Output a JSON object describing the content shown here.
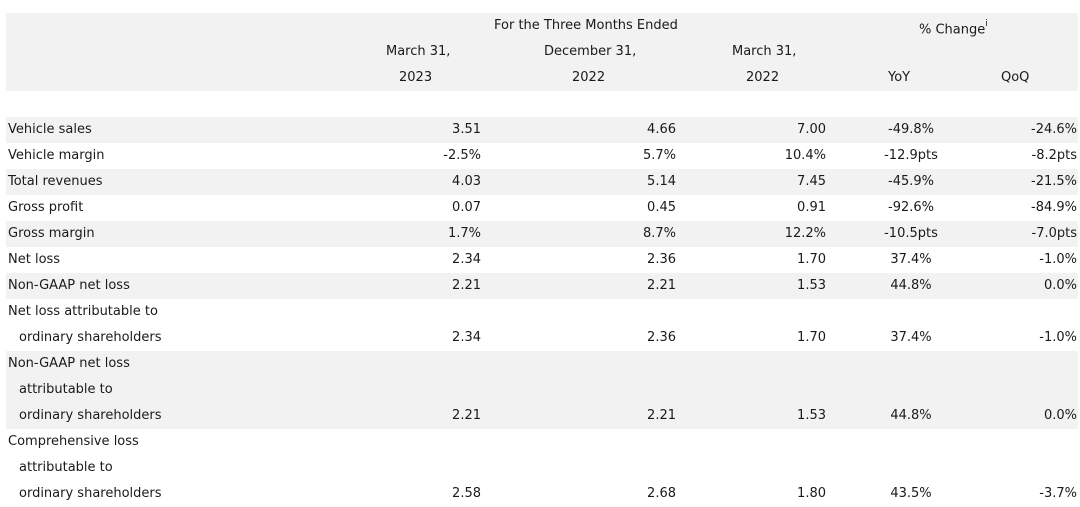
{
  "header": {
    "group_label": "For the Three Months Ended",
    "change_label": "% Change",
    "change_sup": "i",
    "periods": [
      {
        "month": "March 31,",
        "year": "2023"
      },
      {
        "month": "December 31,",
        "year": "2022"
      },
      {
        "month": "March 31,",
        "year": "2022"
      }
    ],
    "yoy": "YoY",
    "qoq": "QoQ"
  },
  "rows": [
    {
      "label": [
        "Vehicle sales"
      ],
      "values": [
        "3.51",
        "4.66",
        "7.00",
        "-49.8%",
        "-24.6%"
      ]
    },
    {
      "label": [
        "Vehicle margin"
      ],
      "values": [
        "-2.5%",
        "5.7%",
        "10.4%",
        "-12.9pts",
        "-8.2pts"
      ]
    },
    {
      "label": [
        "Total revenues"
      ],
      "values": [
        "4.03",
        "5.14",
        "7.45",
        "-45.9%",
        "-21.5%"
      ]
    },
    {
      "label": [
        "Gross profit"
      ],
      "values": [
        "0.07",
        "0.45",
        "0.91",
        "-92.6%",
        "-84.9%"
      ]
    },
    {
      "label": [
        "Gross margin"
      ],
      "values": [
        "1.7%",
        "8.7%",
        "12.2%",
        "-10.5pts",
        "-7.0pts"
      ]
    },
    {
      "label": [
        "Net loss"
      ],
      "values": [
        "2.34",
        "2.36",
        "1.70",
        "37.4%",
        "-1.0%"
      ]
    },
    {
      "label": [
        "Non-GAAP net loss"
      ],
      "values": [
        "2.21",
        "2.21",
        "1.53",
        "44.8%",
        "0.0%"
      ]
    },
    {
      "label": [
        "Net loss attributable to",
        "ordinary shareholders"
      ],
      "values": [
        "2.34",
        "2.36",
        "1.70",
        "37.4%",
        "-1.0%"
      ]
    },
    {
      "label": [
        "Non-GAAP net loss",
        "attributable to",
        "ordinary shareholders"
      ],
      "values": [
        "2.21",
        "2.21",
        "1.53",
        "44.8%",
        "0.0%"
      ]
    },
    {
      "label": [
        "Comprehensive loss",
        "attributable to",
        "ordinary shareholders"
      ],
      "values": [
        "2.58",
        "2.68",
        "1.80",
        "43.5%",
        "-3.7%"
      ]
    }
  ]
}
